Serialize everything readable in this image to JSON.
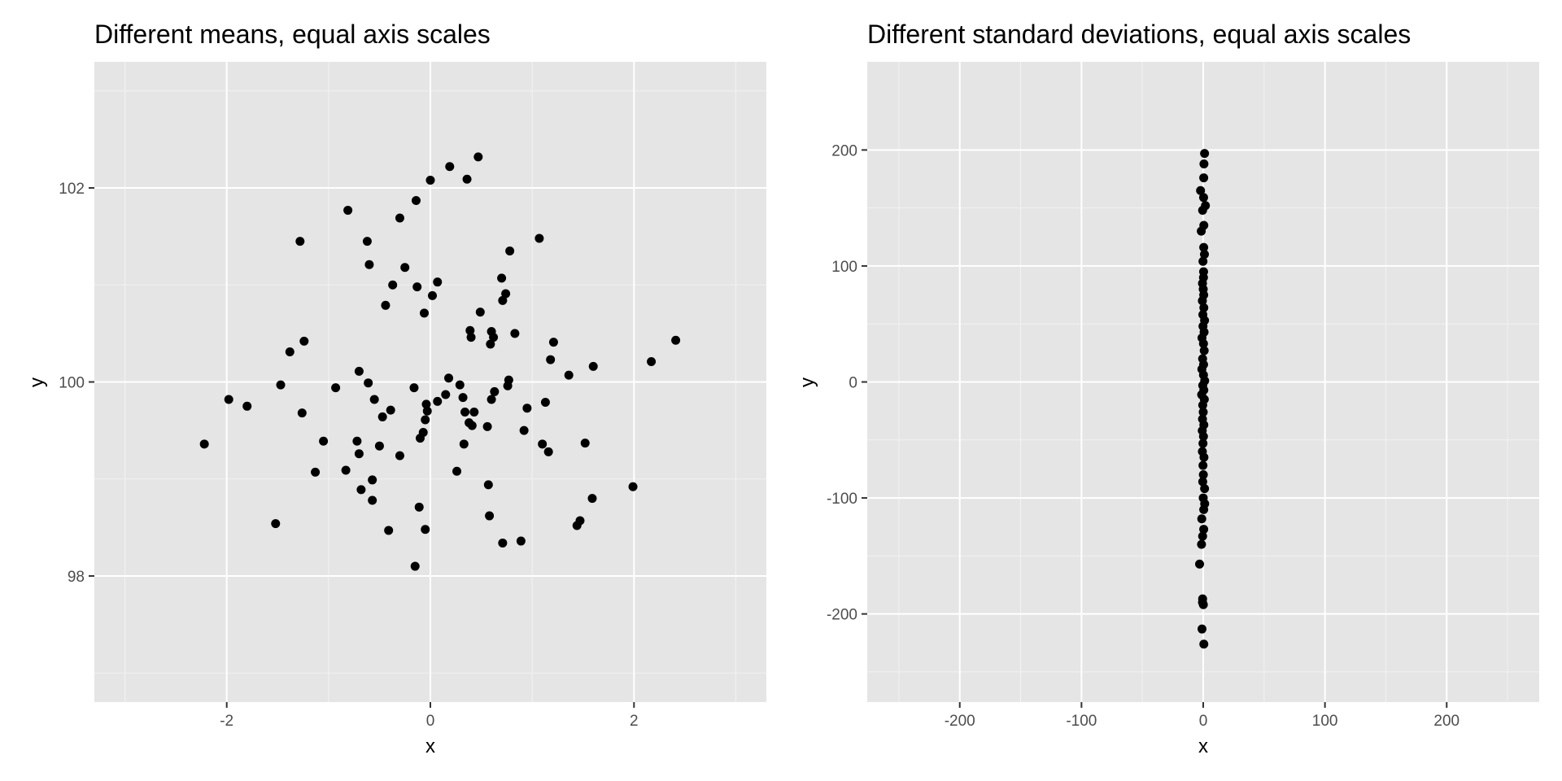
{
  "colors": {
    "panel_background": "#e5e5e5",
    "grid_major": "#ffffff",
    "grid_minor": "#f2f2f2",
    "point": "#000000",
    "tick_text": "#4d4d4d",
    "tick_mark": "#333333"
  },
  "chart_data": [
    {
      "type": "scatter",
      "title": "Different means, equal axis scales",
      "xlabel": "x",
      "ylabel": "y",
      "xlim": [
        -3.3,
        3.3
      ],
      "ylim": [
        96.7,
        103.3
      ],
      "x_ticks": [
        -2,
        0,
        2
      ],
      "x_tick_labels": [
        "-2",
        "0",
        "2"
      ],
      "x_minor_ticks": [
        -3,
        -1,
        1,
        3
      ],
      "y_ticks": [
        98,
        100,
        102
      ],
      "y_tick_labels": [
        "98",
        "100",
        "102"
      ],
      "y_minor_ticks": [
        97,
        99,
        101,
        103
      ],
      "grid": true,
      "legend": "none",
      "points": [
        [
          -2.22,
          99.36
        ],
        [
          -1.98,
          99.82
        ],
        [
          -1.8,
          99.75
        ],
        [
          -1.52,
          98.54
        ],
        [
          -1.47,
          99.97
        ],
        [
          -1.38,
          100.31
        ],
        [
          -1.28,
          101.45
        ],
        [
          -1.26,
          99.68
        ],
        [
          -1.24,
          100.42
        ],
        [
          -1.13,
          99.07
        ],
        [
          -1.05,
          99.39
        ],
        [
          -0.93,
          99.94
        ],
        [
          -0.83,
          99.09
        ],
        [
          -0.81,
          101.77
        ],
        [
          -0.72,
          99.39
        ],
        [
          -0.7,
          100.11
        ],
        [
          -0.7,
          99.26
        ],
        [
          -0.68,
          98.89
        ],
        [
          -0.62,
          101.45
        ],
        [
          -0.61,
          99.99
        ],
        [
          -0.6,
          101.21
        ],
        [
          -0.57,
          98.99
        ],
        [
          -0.57,
          98.78
        ],
        [
          -0.55,
          99.82
        ],
        [
          -0.5,
          99.34
        ],
        [
          -0.47,
          99.64
        ],
        [
          -0.44,
          100.79
        ],
        [
          -0.41,
          98.47
        ],
        [
          -0.39,
          99.71
        ],
        [
          -0.37,
          101.0
        ],
        [
          -0.3,
          101.69
        ],
        [
          -0.3,
          99.24
        ],
        [
          -0.25,
          101.18
        ],
        [
          -0.16,
          99.94
        ],
        [
          -0.15,
          98.1
        ],
        [
          -0.14,
          101.87
        ],
        [
          -0.13,
          100.98
        ],
        [
          -0.11,
          98.71
        ],
        [
          -0.1,
          99.42
        ],
        [
          -0.07,
          99.48
        ],
        [
          -0.06,
          100.71
        ],
        [
          -0.05,
          98.48
        ],
        [
          -0.05,
          99.61
        ],
        [
          -0.04,
          99.77
        ],
        [
          -0.03,
          99.7
        ],
        [
          0.0,
          102.08
        ],
        [
          0.02,
          100.89
        ],
        [
          0.07,
          101.03
        ],
        [
          0.07,
          99.8
        ],
        [
          0.15,
          99.87
        ],
        [
          0.18,
          100.04
        ],
        [
          0.19,
          102.22
        ],
        [
          0.26,
          99.08
        ],
        [
          0.29,
          99.97
        ],
        [
          0.32,
          99.84
        ],
        [
          0.33,
          99.36
        ],
        [
          0.34,
          99.69
        ],
        [
          0.36,
          102.09
        ],
        [
          0.38,
          99.58
        ],
        [
          0.39,
          100.53
        ],
        [
          0.4,
          100.46
        ],
        [
          0.41,
          99.55
        ],
        [
          0.43,
          99.69
        ],
        [
          0.47,
          102.32
        ],
        [
          0.49,
          100.72
        ],
        [
          0.56,
          99.54
        ],
        [
          0.57,
          98.94
        ],
        [
          0.58,
          98.62
        ],
        [
          0.59,
          100.39
        ],
        [
          0.6,
          99.82
        ],
        [
          0.6,
          100.52
        ],
        [
          0.62,
          100.46
        ],
        [
          0.63,
          99.9
        ],
        [
          0.7,
          101.07
        ],
        [
          0.71,
          100.84
        ],
        [
          0.71,
          98.34
        ],
        [
          0.74,
          100.91
        ],
        [
          0.76,
          99.96
        ],
        [
          0.77,
          100.02
        ],
        [
          0.78,
          101.35
        ],
        [
          0.83,
          100.5
        ],
        [
          0.89,
          98.36
        ],
        [
          0.92,
          99.5
        ],
        [
          0.95,
          99.73
        ],
        [
          1.07,
          101.48
        ],
        [
          1.1,
          99.36
        ],
        [
          1.13,
          99.79
        ],
        [
          1.16,
          99.28
        ],
        [
          1.18,
          100.23
        ],
        [
          1.21,
          100.41
        ],
        [
          1.36,
          100.07
        ],
        [
          1.44,
          98.52
        ],
        [
          1.47,
          98.57
        ],
        [
          1.52,
          99.37
        ],
        [
          1.59,
          98.8
        ],
        [
          1.6,
          100.16
        ],
        [
          1.99,
          98.92
        ],
        [
          2.17,
          100.21
        ],
        [
          2.41,
          100.43
        ]
      ]
    },
    {
      "type": "scatter",
      "title": "Different standard deviations, equal axis scales",
      "xlabel": "x",
      "ylabel": "y",
      "xlim": [
        -276,
        276
      ],
      "ylim": [
        -276,
        276
      ],
      "x_ticks": [
        -200,
        -100,
        0,
        100,
        200
      ],
      "x_tick_labels": [
        "-200",
        "-100",
        "0",
        "100",
        "200"
      ],
      "x_minor_ticks": [
        -250,
        -150,
        -50,
        50,
        150,
        250
      ],
      "y_ticks": [
        -200,
        -100,
        0,
        100,
        200
      ],
      "y_tick_labels": [
        "-200",
        "-100",
        "0",
        "100",
        "200"
      ],
      "y_minor_ticks": [
        -250,
        -150,
        -50,
        50,
        150
      ],
      "grid": true,
      "legend": "none",
      "points": [
        [
          1.1,
          197
        ],
        [
          0.6,
          188
        ],
        [
          0.4,
          176
        ],
        [
          -2.2,
          165
        ],
        [
          0.3,
          159
        ],
        [
          1.8,
          152
        ],
        [
          -0.5,
          148
        ],
        [
          0.5,
          135
        ],
        [
          -1.6,
          130
        ],
        [
          0.4,
          116
        ],
        [
          1.0,
          110
        ],
        [
          -0.2,
          104
        ],
        [
          0.3,
          95
        ],
        [
          0.2,
          90
        ],
        [
          -0.6,
          85
        ],
        [
          0.0,
          80
        ],
        [
          0.4,
          75
        ],
        [
          -0.7,
          70
        ],
        [
          0.5,
          64
        ],
        [
          -0.3,
          58
        ],
        [
          1.1,
          53
        ],
        [
          -0.2,
          48
        ],
        [
          0.7,
          43
        ],
        [
          -1.0,
          38
        ],
        [
          0.2,
          33
        ],
        [
          0.8,
          27
        ],
        [
          -0.5,
          20
        ],
        [
          0.3,
          15
        ],
        [
          -1.1,
          11
        ],
        [
          0.2,
          6
        ],
        [
          1.2,
          1
        ],
        [
          -0.4,
          -3
        ],
        [
          0.5,
          -7
        ],
        [
          -1.3,
          -11
        ],
        [
          0.9,
          -15
        ],
        [
          -0.4,
          -20
        ],
        [
          0.0,
          -26
        ],
        [
          -0.6,
          -32
        ],
        [
          0.5,
          -37
        ],
        [
          -0.8,
          -42
        ],
        [
          0.2,
          -47
        ],
        [
          -0.2,
          -53
        ],
        [
          -0.7,
          -60
        ],
        [
          0.6,
          -65
        ],
        [
          -0.2,
          -72
        ],
        [
          0.1,
          -80
        ],
        [
          -0.4,
          -86
        ],
        [
          1.1,
          -92
        ],
        [
          0.0,
          -100
        ],
        [
          1.2,
          -105
        ],
        [
          0.4,
          -110
        ],
        [
          -1.2,
          -118
        ],
        [
          0.4,
          -127
        ],
        [
          -0.5,
          -133
        ],
        [
          -1.4,
          -140
        ],
        [
          -3.0,
          -157
        ],
        [
          -0.5,
          -187
        ],
        [
          -0.6,
          -190
        ],
        [
          0.1,
          -192
        ],
        [
          -1.0,
          -213
        ],
        [
          0.5,
          -226
        ]
      ]
    }
  ]
}
